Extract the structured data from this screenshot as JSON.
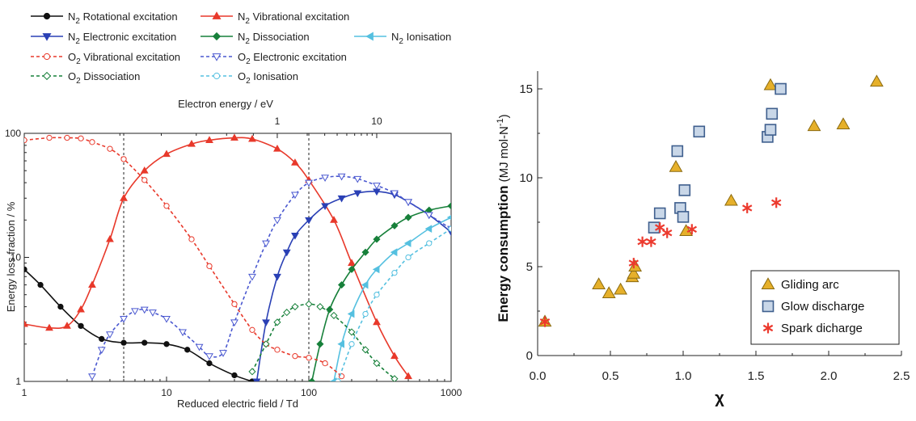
{
  "chart_data": [
    {
      "type": "line",
      "xlabel": "Reduced electric field / Td",
      "ylabel": "Energy loss fraction / %",
      "top_xlabel": "Electron energy / eV",
      "x_scale": "log",
      "y_scale": "log",
      "xlim": [
        1,
        1000
      ],
      "ylim": [
        1,
        100
      ],
      "xticks": [
        "1",
        "10",
        "100",
        "1000"
      ],
      "yticks": [
        "1",
        "10",
        "100"
      ],
      "top_ticks": [
        {
          "value": 1,
          "label": "1"
        },
        {
          "value": 10,
          "label": "10"
        }
      ],
      "top_axis_map": {
        "field": [
          4.7,
          60,
          300,
          1000
        ],
        "energy": [
          0.5,
          1,
          10,
          14
        ]
      },
      "vlines": [
        5,
        100
      ],
      "legend": {
        "placement": "top",
        "columns_by_row": [
          2,
          3,
          2,
          2
        ]
      },
      "series": [
        {
          "name": "N2 Rotational excitation",
          "legend": {
            "base": "N",
            "sub": "2",
            "text": " Rotational excitation"
          },
          "color": "#111111",
          "dash": false,
          "marker": "circle",
          "x": [
            1,
            1.3,
            1.8,
            2.5,
            3.5,
            5,
            7,
            10,
            14,
            20,
            30,
            40
          ],
          "y": [
            8,
            6,
            4,
            2.8,
            2.2,
            2.05,
            2.05,
            2.0,
            1.8,
            1.4,
            1.12,
            1.0
          ]
        },
        {
          "name": "N2 Vibrational excitation",
          "legend": {
            "base": "N",
            "sub": "2",
            "text": " Vibrational excitation"
          },
          "color": "#e8392b",
          "dash": false,
          "marker": "triangle-up",
          "x": [
            1,
            1.5,
            2,
            2.5,
            3,
            4,
            5,
            7,
            10,
            15,
            20,
            30,
            40,
            60,
            80,
            100,
            150,
            200,
            300,
            400,
            500
          ],
          "y": [
            2.9,
            2.7,
            2.8,
            3.8,
            6,
            14,
            30,
            50,
            68,
            82,
            88,
            92,
            90,
            75,
            58,
            42,
            20,
            9,
            3,
            1.6,
            1.1
          ]
        },
        {
          "name": "N2 Electronic excitation",
          "legend": {
            "base": "N",
            "sub": "2",
            "text": " Electronic excitation"
          },
          "color": "#2a40b5",
          "dash": false,
          "marker": "triangle-down",
          "x": [
            43,
            50,
            60,
            70,
            80,
            100,
            130,
            170,
            220,
            300,
            400,
            500,
            700,
            1000
          ],
          "y": [
            1,
            3,
            7,
            11,
            15,
            20,
            26,
            30,
            33,
            34,
            32,
            28,
            22,
            16
          ]
        },
        {
          "name": "N2 Dissociation",
          "legend": {
            "base": "N",
            "sub": "2",
            "text": " Dissociation"
          },
          "color": "#17803a",
          "dash": false,
          "marker": "diamond",
          "x": [
            105,
            120,
            140,
            170,
            200,
            250,
            300,
            400,
            500,
            700,
            1000
          ],
          "y": [
            1,
            2,
            3.8,
            6,
            8,
            11,
            14,
            18,
            21,
            24,
            26
          ]
        },
        {
          "name": "N2 Ionisation",
          "legend": {
            "base": "N",
            "sub": "2",
            "text": " Ionisation"
          },
          "color": "#55c0e0",
          "dash": false,
          "marker": "triangle-left",
          "x": [
            150,
            170,
            200,
            250,
            300,
            400,
            500,
            700,
            1000
          ],
          "y": [
            1,
            2,
            3.5,
            6,
            8,
            11,
            13,
            17,
            21
          ]
        },
        {
          "name": "O2 Vibrational excitation",
          "legend": {
            "base": "O",
            "sub": "2",
            "text": " Vibrational excitation"
          },
          "color": "#e8392b",
          "dash": true,
          "marker": "circle-open",
          "x": [
            1,
            1.5,
            2,
            2.5,
            3,
            4,
            5,
            7,
            10,
            15,
            20,
            30,
            40,
            50,
            60,
            80,
            100,
            130,
            170
          ],
          "y": [
            88,
            92,
            92,
            91,
            85,
            75,
            62,
            42,
            26,
            14,
            8.5,
            4.2,
            2.6,
            2,
            1.8,
            1.6,
            1.55,
            1.4,
            1.1
          ]
        },
        {
          "name": "O2 Electronic excitation",
          "legend": {
            "base": "O",
            "sub": "2",
            "text": " Electronic excitation"
          },
          "color": "#4a58d0",
          "dash": true,
          "marker": "triangle-down-open",
          "x": [
            3,
            3.5,
            4,
            5,
            6,
            7,
            8,
            10,
            13,
            17,
            20,
            25,
            30,
            40,
            50,
            60,
            80,
            100,
            130,
            170,
            220,
            300,
            400,
            500,
            700,
            1000
          ],
          "y": [
            1.1,
            1.8,
            2.4,
            3.2,
            3.7,
            3.8,
            3.6,
            3.2,
            2.5,
            1.9,
            1.6,
            1.7,
            3,
            7,
            13,
            20,
            32,
            40,
            44,
            45,
            43,
            38,
            33,
            28,
            22,
            17
          ]
        },
        {
          "name": "O2 Dissociation",
          "legend": {
            "base": "O",
            "sub": "2",
            "text": " Dissociation"
          },
          "color": "#17803a",
          "dash": true,
          "marker": "diamond-open",
          "x": [
            40,
            50,
            60,
            70,
            80,
            100,
            120,
            150,
            200,
            250,
            300,
            400
          ],
          "y": [
            1.2,
            2,
            3,
            3.6,
            4,
            4.2,
            4,
            3.4,
            2.5,
            1.8,
            1.4,
            1.05
          ]
        },
        {
          "name": "O2 Ionisation",
          "legend": {
            "base": "O",
            "sub": "2",
            "text": " Ionisation"
          },
          "color": "#55c0e0",
          "dash": true,
          "marker": "circle-open",
          "x": [
            160,
            200,
            250,
            300,
            400,
            500,
            700,
            1000
          ],
          "y": [
            1,
            2,
            3.5,
            5,
            7.5,
            10,
            13,
            17
          ]
        }
      ]
    },
    {
      "type": "scatter",
      "xlabel": "χ",
      "ylabel": {
        "bold": "Energy consumption",
        "unit": " (MJ mol-N",
        "sup": "-1",
        "close": ")"
      },
      "xlim": [
        0,
        2.5
      ],
      "ylim": [
        0,
        16
      ],
      "xticks": [
        {
          "value": 0.0,
          "label": "0.0"
        },
        {
          "value": 0.5,
          "label": "0.5"
        },
        {
          "value": 1.0,
          "label": "1.0"
        },
        {
          "value": 1.5,
          "label": "1.5"
        },
        {
          "value": 2.0,
          "label": "2.0"
        },
        {
          "value": 2.5,
          "label": "2.5"
        }
      ],
      "yticks": [
        {
          "value": 0,
          "label": "0"
        },
        {
          "value": 5,
          "label": "5"
        },
        {
          "value": 10,
          "label": "10"
        },
        {
          "value": 15,
          "label": "15"
        }
      ],
      "legend": {
        "placement": "bottom-right"
      },
      "series": [
        {
          "name": "Gliding arc",
          "marker": "triangle",
          "color": "#e6b02a",
          "edge": "#8a6a10",
          "x": [
            0.05,
            0.42,
            0.49,
            0.57,
            0.65,
            0.66,
            0.67,
            0.95,
            1.02,
            1.33,
            1.6,
            1.9,
            2.1,
            2.33
          ],
          "y": [
            1.9,
            4.0,
            3.5,
            3.7,
            4.4,
            4.6,
            5.0,
            10.6,
            7.0,
            8.7,
            15.2,
            12.9,
            13.0,
            15.4
          ]
        },
        {
          "name": "Glow discharge",
          "marker": "square",
          "color": "#c9d7e8",
          "edge": "#3f5f8e",
          "x": [
            0.8,
            0.84,
            0.96,
            0.98,
            1.0,
            1.01,
            1.11,
            1.58,
            1.6,
            1.61,
            1.67
          ],
          "y": [
            7.2,
            8.0,
            11.5,
            8.3,
            7.8,
            9.3,
            12.6,
            12.3,
            12.7,
            13.6,
            15.0
          ]
        },
        {
          "name": "Spark dicharge",
          "marker": "asterisk",
          "color": "#ec3a2e",
          "edge": "#ec3a2e",
          "x": [
            0.05,
            0.66,
            0.72,
            0.78,
            0.84,
            0.89,
            1.06,
            1.44,
            1.64
          ],
          "y": [
            1.9,
            5.2,
            6.4,
            6.4,
            7.2,
            6.9,
            7.1,
            8.3,
            8.6
          ]
        }
      ]
    }
  ]
}
